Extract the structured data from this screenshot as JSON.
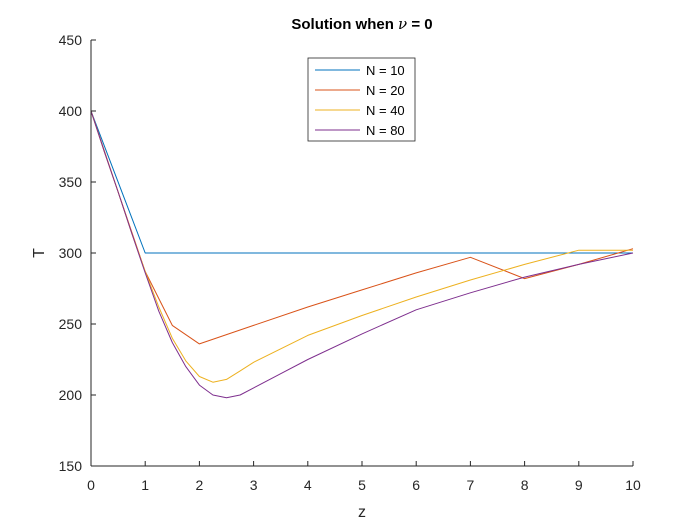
{
  "chart_data": {
    "type": "line",
    "title_prefix": "Solution when ",
    "title_symbol": "ν",
    "title_suffix": " = 0",
    "xlabel": "z",
    "ylabel": "T",
    "xlim": [
      0,
      10
    ],
    "ylim": [
      150,
      450
    ],
    "xticks": [
      0,
      1,
      2,
      3,
      4,
      5,
      6,
      7,
      8,
      9,
      10
    ],
    "yticks": [
      150,
      200,
      250,
      300,
      350,
      400,
      450
    ],
    "grid": false,
    "legend_position": "top-center",
    "series": [
      {
        "name": "N = 10",
        "color": "#0072BD",
        "x": [
          0,
          1,
          2,
          3,
          4,
          5,
          6,
          7,
          8,
          9,
          10
        ],
        "y": [
          400,
          300,
          300,
          300,
          300,
          300,
          300,
          300,
          300,
          300,
          300
        ]
      },
      {
        "name": "N = 20",
        "color": "#D95319",
        "x": [
          0,
          0.5,
          1,
          1.5,
          2,
          3,
          4,
          5,
          6,
          7,
          8,
          9,
          10
        ],
        "y": [
          400,
          343,
          287,
          249,
          236,
          249,
          262,
          274,
          286,
          297,
          282,
          292,
          303
        ]
      },
      {
        "name": "N = 40",
        "color": "#EDB120",
        "x": [
          0,
          0.25,
          0.5,
          0.75,
          1,
          1.25,
          1.5,
          1.75,
          2,
          2.25,
          2.5,
          2.75,
          3,
          4,
          5,
          6,
          7,
          8,
          9,
          10
        ],
        "y": [
          400,
          371,
          343,
          314,
          287,
          262,
          240,
          224,
          213,
          209,
          211,
          217,
          223,
          242,
          256,
          269,
          281,
          292,
          302,
          302
        ]
      },
      {
        "name": "N = 80",
        "color": "#7E2F8E",
        "x": [
          0,
          0.25,
          0.5,
          0.75,
          1,
          1.25,
          1.5,
          1.75,
          2,
          2.25,
          2.5,
          2.75,
          3,
          3.5,
          4,
          5,
          6,
          7,
          8,
          9,
          10
        ],
        "y": [
          400,
          371,
          343,
          314,
          286,
          259,
          237,
          220,
          207,
          200,
          198,
          200,
          205,
          215,
          225,
          243,
          260,
          272,
          283,
          292,
          300
        ]
      }
    ]
  }
}
